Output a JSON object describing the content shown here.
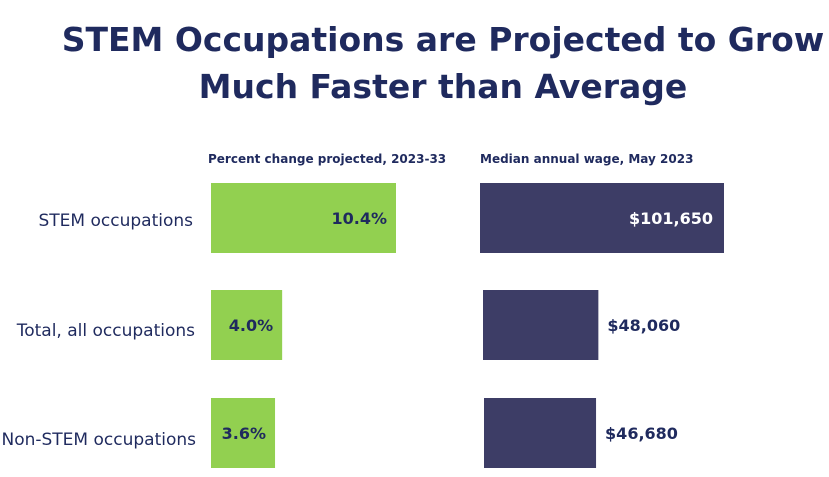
{
  "chart_data": {
    "type": "bar",
    "orientation": "horizontal",
    "title_lines": [
      "STEM Occupations are Projected to Grow",
      "Much Faster than Average"
    ],
    "categories": [
      "STEM occupations",
      "Total, all occupations",
      "Non-STEM occupations"
    ],
    "panels": [
      {
        "name": "Percent change projected, 2023-33",
        "unit": "percent",
        "values": [
          10.4,
          4.0,
          3.6
        ],
        "labels": [
          "10.4%",
          "4.0%",
          "3.6%"
        ],
        "color": "#92d050",
        "label_color": "#1f2a5e"
      },
      {
        "name": "Median annual wage, May 2023",
        "unit": "dollars",
        "values": [
          101650,
          48060,
          46680
        ],
        "labels": [
          "$101,650",
          "$48,060",
          "$46,680"
        ],
        "color": "#3d3d66",
        "label_inside_color": "#ffffff",
        "label_outside_color": "#1f2a5e"
      }
    ]
  },
  "colors": {
    "title": "#1f2a5e",
    "text": "#1f2a5e"
  }
}
